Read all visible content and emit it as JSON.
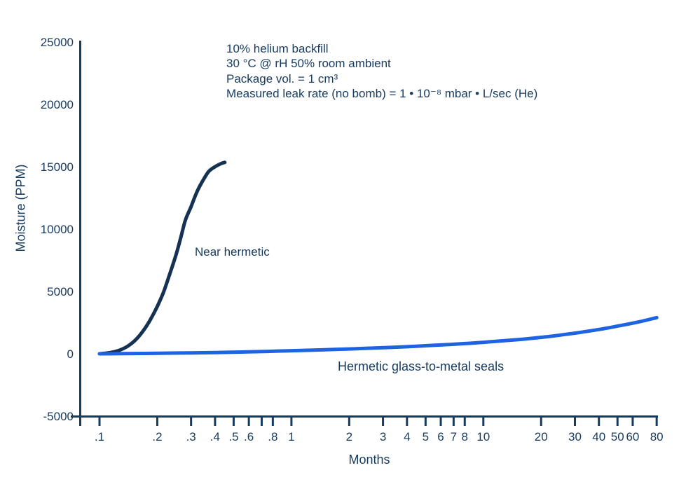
{
  "colors": {
    "text_navy": "#173a5f",
    "axis": "#173a5f",
    "near_hermetic_curve": "#153252",
    "hermetic_curve": "#1d63e2",
    "background": "#ffffff"
  },
  "chart_data": {
    "type": "line",
    "title": "",
    "xlabel": "Months",
    "ylabel": "Moisture (PPM)",
    "x_scale": "log",
    "xlim": [
      0.1,
      80
    ],
    "ylim": [
      -5000,
      25000
    ],
    "grid": false,
    "legend_position": "none",
    "annotations": [
      "10% helium backfill",
      "30 °C @ rH 50% room ambient",
      "Package vol. = 1 cm³",
      "Measured leak rate (no bomb) = 1 • 10⁻⁸ mbar • L/sec (He)"
    ],
    "x_ticks": [
      {
        "value": 0.1,
        "label": ".1"
      },
      {
        "value": 0.2,
        "label": ".2"
      },
      {
        "value": 0.3,
        "label": ".3"
      },
      {
        "value": 0.4,
        "label": ".4"
      },
      {
        "value": 0.5,
        "label": ".5"
      },
      {
        "value": 0.6,
        "label": ".6"
      },
      {
        "value": 0.7,
        "label": ""
      },
      {
        "value": 0.8,
        "label": ".8"
      },
      {
        "value": 1,
        "label": "1"
      },
      {
        "value": 2,
        "label": "2"
      },
      {
        "value": 3,
        "label": "3"
      },
      {
        "value": 4,
        "label": "4"
      },
      {
        "value": 5,
        "label": "5"
      },
      {
        "value": 6,
        "label": "6"
      },
      {
        "value": 7,
        "label": "7"
      },
      {
        "value": 8,
        "label": "8"
      },
      {
        "value": 10,
        "label": "10"
      },
      {
        "value": 20,
        "label": "20"
      },
      {
        "value": 30,
        "label": "30"
      },
      {
        "value": 40,
        "label": "40"
      },
      {
        "value": 50,
        "label": "50"
      },
      {
        "value": 60,
        "label": "60"
      },
      {
        "value": 80,
        "label": "80"
      }
    ],
    "y_ticks": [
      {
        "value": 25000,
        "label": "25000"
      },
      {
        "value": 20000,
        "label": "20000"
      },
      {
        "value": 15000,
        "label": "15000"
      },
      {
        "value": 10000,
        "label": "10000"
      },
      {
        "value": 5000,
        "label": "5000"
      },
      {
        "value": 0,
        "label": "0"
      },
      {
        "value": -5000,
        "label": "-5000"
      }
    ],
    "series": [
      {
        "id": "near-hermetic",
        "label": "Near hermetic",
        "color": "#153252",
        "points": [
          [
            0.1,
            0
          ],
          [
            0.112,
            80
          ],
          [
            0.125,
            250
          ],
          [
            0.14,
            600
          ],
          [
            0.155,
            1150
          ],
          [
            0.17,
            1900
          ],
          [
            0.185,
            2800
          ],
          [
            0.2,
            3800
          ],
          [
            0.215,
            4900
          ],
          [
            0.23,
            6200
          ],
          [
            0.25,
            7900
          ],
          [
            0.265,
            9300
          ],
          [
            0.28,
            10700
          ],
          [
            0.3,
            11800
          ],
          [
            0.32,
            12900
          ],
          [
            0.34,
            13700
          ],
          [
            0.37,
            14600
          ],
          [
            0.4,
            15000
          ],
          [
            0.43,
            15250
          ],
          [
            0.45,
            15350
          ]
        ]
      },
      {
        "id": "hermetic-glass-to-metal-seals",
        "label": "Hermetic glass-to-metal seals",
        "color": "#1d63e2",
        "points": [
          [
            0.1,
            0
          ],
          [
            0.13,
            15
          ],
          [
            0.17,
            30
          ],
          [
            0.22,
            50
          ],
          [
            0.3,
            75
          ],
          [
            0.4,
            100
          ],
          [
            0.55,
            140
          ],
          [
            0.75,
            190
          ],
          [
            1,
            250
          ],
          [
            1.4,
            310
          ],
          [
            2,
            390
          ],
          [
            2.8,
            470
          ],
          [
            4,
            570
          ],
          [
            5.5,
            680
          ],
          [
            8,
            820
          ],
          [
            11,
            970
          ],
          [
            16,
            1170
          ],
          [
            22,
            1390
          ],
          [
            30,
            1660
          ],
          [
            40,
            1950
          ],
          [
            52,
            2270
          ],
          [
            65,
            2570
          ],
          [
            80,
            2900
          ]
        ]
      }
    ]
  }
}
